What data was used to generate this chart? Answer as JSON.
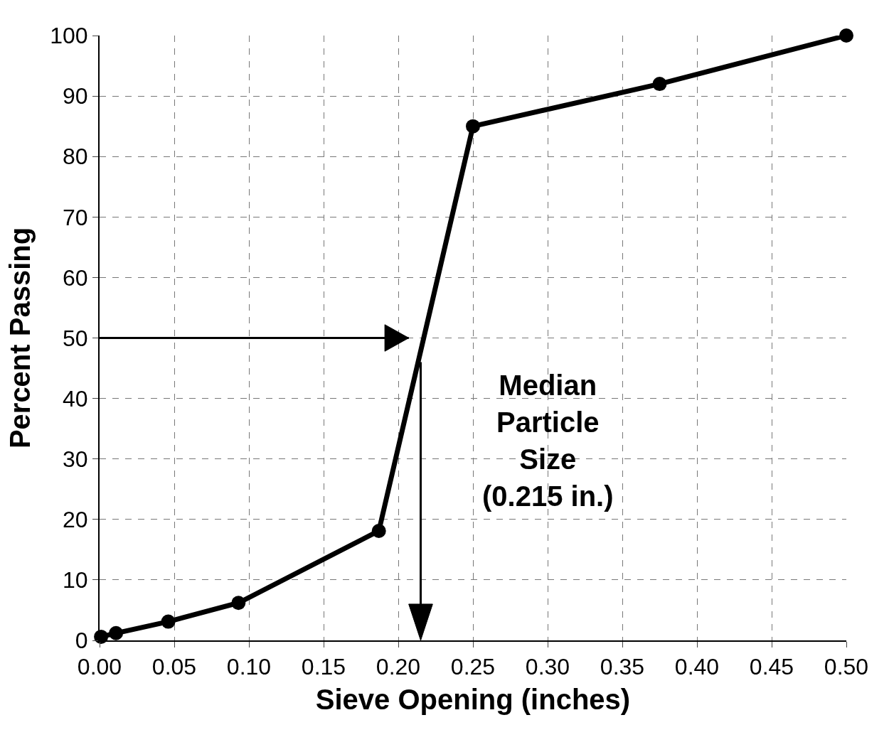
{
  "chart_data": {
    "type": "line",
    "xlabel": "Sieve Opening (inches)",
    "ylabel": "Percent Passing",
    "x": [
      0.001,
      0.011,
      0.046,
      0.093,
      0.187,
      0.25,
      0.375,
      0.5
    ],
    "series": [
      {
        "color": "#000000",
        "values": [
          0.6,
          1.2,
          3.1,
          6.2,
          18.1,
          85,
          92,
          100
        ]
      }
    ],
    "xlim": [
      0,
      0.5
    ],
    "ylim": [
      0,
      100
    ],
    "xticks": [
      {
        "value": 0,
        "label": "0.00"
      },
      {
        "value": 0.05,
        "label": "0.05"
      },
      {
        "value": 0.1,
        "label": "0.10"
      },
      {
        "value": 0.15,
        "label": "0.15"
      },
      {
        "value": 0.2,
        "label": "0.20"
      },
      {
        "value": 0.25,
        "label": "0.25"
      },
      {
        "value": 0.3,
        "label": "0.30"
      },
      {
        "value": 0.35,
        "label": "0.35"
      },
      {
        "value": 0.4,
        "label": "0.40"
      },
      {
        "value": 0.45,
        "label": "0.45"
      },
      {
        "value": 0.5,
        "label": "0.50"
      }
    ],
    "yticks": [
      0,
      10,
      20,
      30,
      40,
      50,
      60,
      70,
      80,
      90,
      100
    ],
    "annotations": [
      {
        "text": "Median\nParticle\nSize\n(0.215 in.)",
        "x": 0.215,
        "y": 50
      }
    ],
    "ref_lines": [
      {
        "axis": "y",
        "value": 50,
        "line_style": "solid",
        "color": "#000000"
      },
      {
        "axis": "x",
        "value": 0.215,
        "line_style": "solid",
        "color": "#000000"
      }
    ],
    "grid": true,
    "marker": "circle",
    "line_style": "solid"
  }
}
